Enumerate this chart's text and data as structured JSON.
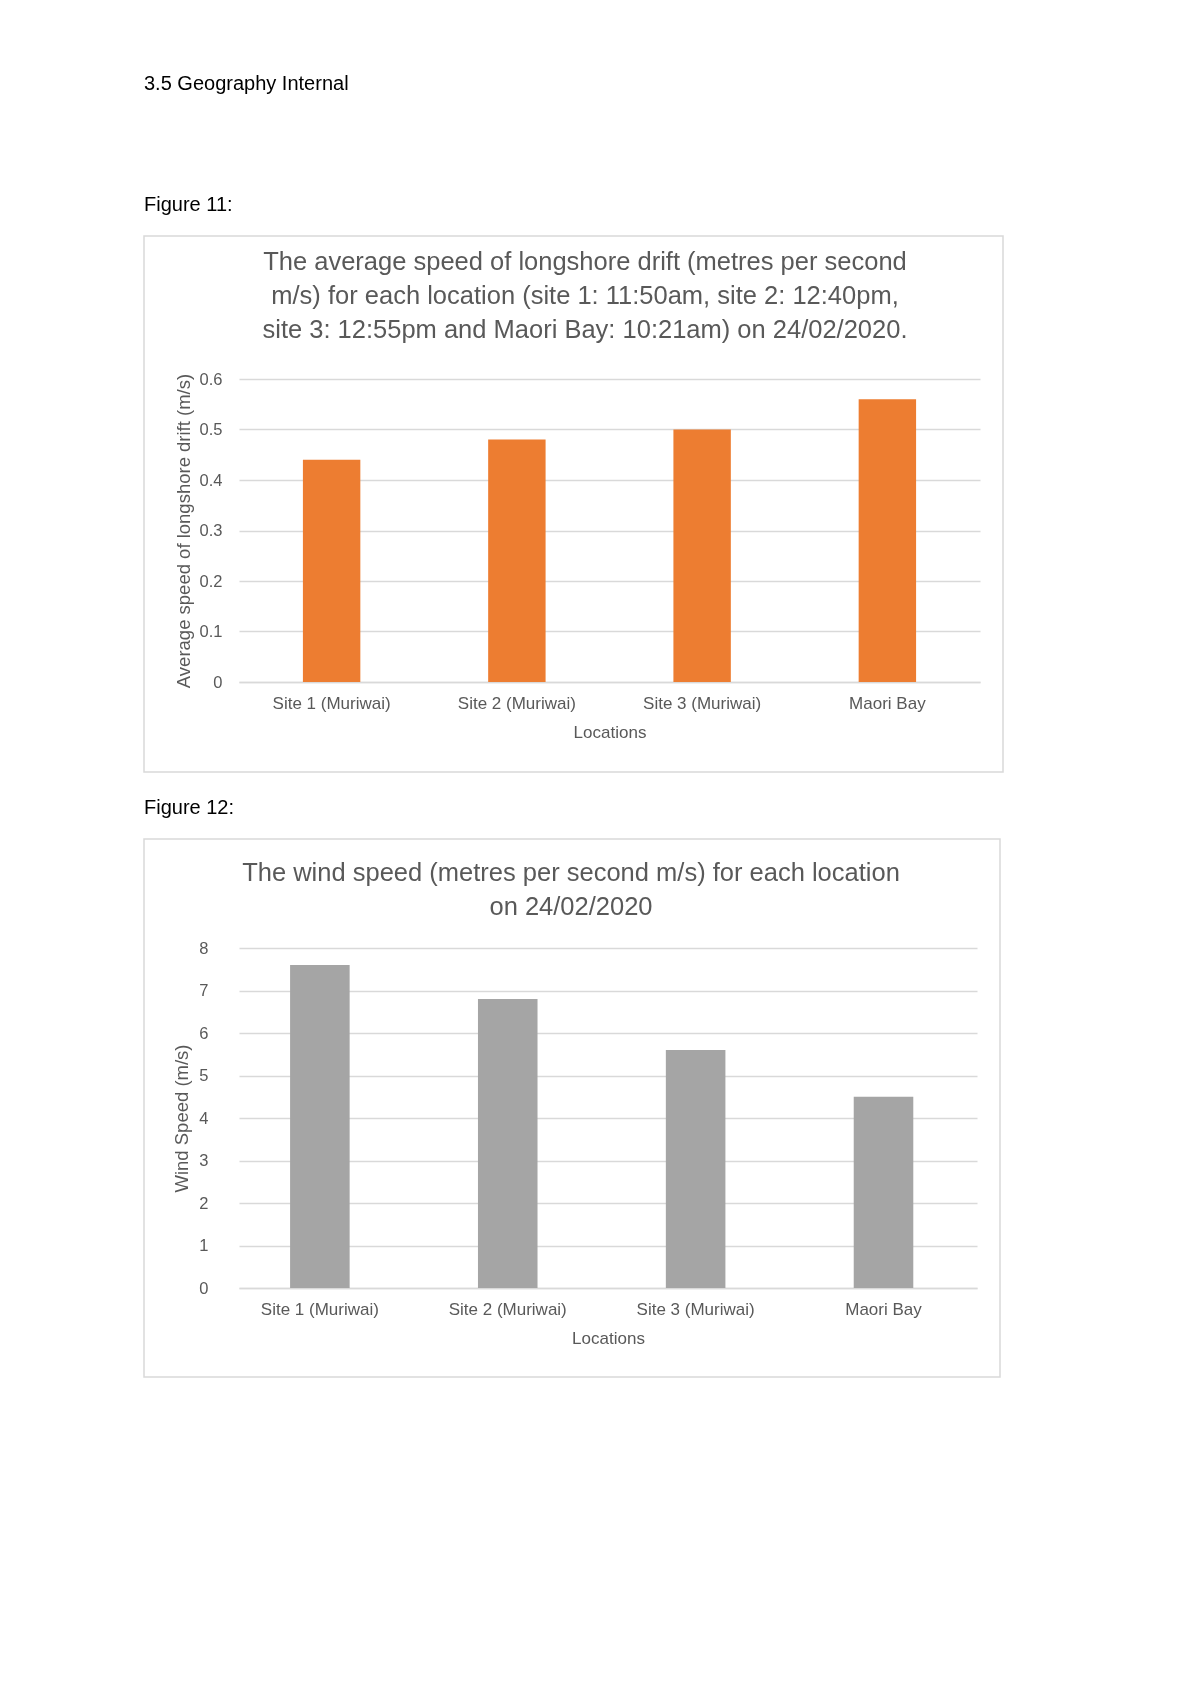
{
  "chart_data": [
    {
      "type": "bar",
      "title": "The average speed of longshore drift (metres per second m/s) for each location (site 1: 11:50am, site 2: 12:40pm, site 3: 12:55pm and Maori Bay: 10:21am) on 24/02/2020.",
      "xlabel": "Locations",
      "ylabel": "Average speed of longshore drift (m/s)",
      "annotations": [
        "3.5 Geography Internal",
        "Figure 11:"
      ],
      "categories": [
        "Site 1 (Muriwai)",
        "Site 2 (Muriwai)",
        "Site 3 (Muriwai)",
        "Maori Bay"
      ],
      "series": [
        {
          "color": "#ed7d31",
          "values": [
            0.44,
            0.48,
            0.5,
            0.56
          ]
        }
      ],
      "ylim": [
        0,
        0.6
      ],
      "yticks": [
        0,
        0.1,
        0.2,
        0.3,
        0.4,
        0.5,
        0.6
      ],
      "grid": "y"
    },
    {
      "type": "bar",
      "title": "The wind speed  (metres per second m/s) for each location on 24/02/2020",
      "xlabel": "Locations",
      "ylabel": "Wind Speed (m/s)",
      "annotations": [
        "Figure 12:"
      ],
      "categories": [
        "Site 1 (Muriwai)",
        "Site 2 (Muriwai)",
        "Site 3 (Muriwai)",
        "Maori Bay"
      ],
      "series": [
        {
          "color": "#a5a5a5",
          "values": [
            7.6,
            6.8,
            5.6,
            4.5
          ]
        }
      ],
      "ylim": [
        0,
        8
      ],
      "yticks": [
        0,
        1,
        2,
        3,
        4,
        5,
        6,
        7,
        8
      ],
      "grid": "y"
    }
  ]
}
